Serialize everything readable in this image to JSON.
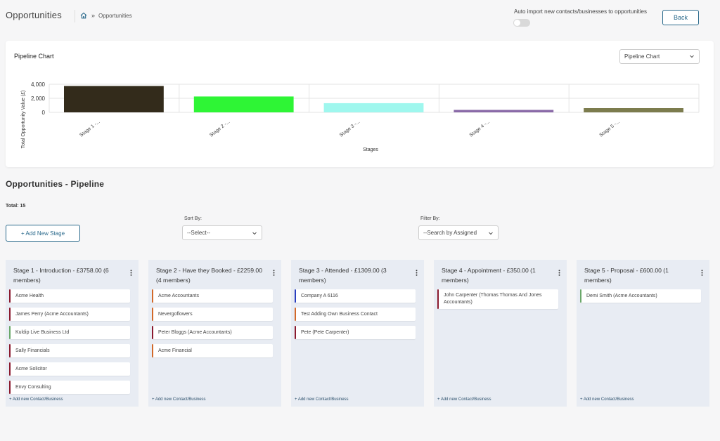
{
  "header": {
    "title": "Opportunities",
    "breadcrumb_sep": "»",
    "breadcrumb_current": "Opportunities",
    "auto_import_label": "Auto import new contacts/businesses to opportunities",
    "back_label": "Back"
  },
  "chart_card": {
    "title": "Pipeline Chart",
    "select_value": "Pipeline Chart"
  },
  "chart_data": {
    "type": "bar",
    "categories": [
      "Stage 1 -...",
      "Stage 2 -...",
      "Stage 3 -...",
      "Stage 4 -...",
      "Stage 5 -..."
    ],
    "values": [
      3758,
      2259,
      1309,
      350,
      600
    ],
    "colors": [
      "#332b1b",
      "#2ef535",
      "#9ff7ee",
      "#8a6aa8",
      "#7c7c4e"
    ],
    "xlabel": "Stages",
    "ylabel": "Total Opportunity Value (£)",
    "yticks": [
      "4,000",
      "2,000",
      "0"
    ],
    "ylim": [
      0,
      4000
    ],
    "grid": true,
    "legend": "none"
  },
  "pipeline": {
    "title": "Opportunities - Pipeline",
    "total": "Total: 15",
    "add_stage_label": "+ Add New Stage",
    "sort": {
      "label": "Sort By:",
      "value": "--Select--"
    },
    "filter": {
      "label": "Filter By:",
      "value": "--Search by Assigned"
    },
    "add_contact_label": "+ Add new Contact/Business",
    "stages": [
      {
        "title": "Stage 1 - Introduction - £3758.00 (6 members)",
        "cards": [
          {
            "name": "Acme Health",
            "color": "#8b1a2e"
          },
          {
            "name": "James Perry (Acme Accountants)",
            "color": "#8b1a2e"
          },
          {
            "name": "Kuldip Live Business Ltd",
            "color": "#6aa86a"
          },
          {
            "name": "Sally Financials",
            "color": "#8b1a2e"
          },
          {
            "name": "Acme Solicitor",
            "color": "#8b1a2e"
          },
          {
            "name": "Envy Consulting",
            "color": "#8b1a2e"
          }
        ]
      },
      {
        "title": "Stage 2 - Have they Booked - £2259.00 (4 members)",
        "cards": [
          {
            "name": "Acme Accountants",
            "color": "#d2692a"
          },
          {
            "name": "Nevergoflowers",
            "color": "#d2692a"
          },
          {
            "name": "Peter Bloggs (Acme Accountants)",
            "color": "#8b1a2e"
          },
          {
            "name": "Acme Financial",
            "color": "#d2692a"
          }
        ]
      },
      {
        "title": "Stage 3 - Attended - £1309.00 (3 members)",
        "cards": [
          {
            "name": "Company A 6116",
            "color": "#2a3fbf"
          },
          {
            "name": "Test Adding Own Business Contact",
            "color": "#d2692a"
          },
          {
            "name": "Pete (Pete Carpenter)",
            "color": "#8b1a2e"
          }
        ]
      },
      {
        "title": "Stage 4 - Appointment - £350.00 (1 members)",
        "cards": [
          {
            "name": "John Carpenter (Thomas Thomas And Jones Accountants)",
            "color": "#8b1a2e",
            "tall": true
          }
        ]
      },
      {
        "title": "Stage 5 - Proposal - £600.00 (1 members)",
        "cards": [
          {
            "name": "Demi Smith (Acme Accountants)",
            "color": "#6aa86a"
          }
        ]
      }
    ]
  }
}
